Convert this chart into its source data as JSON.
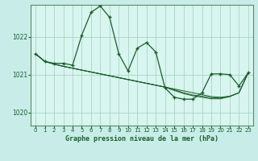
{
  "title": "Graphe pression niveau de la mer (hPa)",
  "background_color": "#c8ede8",
  "plot_bg_color": "#d8f5ef",
  "grid_color": "#9ecfbf",
  "line_color": "#1a5e2a",
  "marker_color": "#1a5e2a",
  "xlim": [
    -0.5,
    23.5
  ],
  "ylim": [
    1019.65,
    1022.85
  ],
  "yticks": [
    1020,
    1021,
    1022
  ],
  "xticks": [
    0,
    1,
    2,
    3,
    4,
    5,
    6,
    7,
    8,
    9,
    10,
    11,
    12,
    13,
    14,
    15,
    16,
    17,
    18,
    19,
    20,
    21,
    22,
    23
  ],
  "series": [
    [
      1021.55,
      1021.35,
      1021.3,
      1021.3,
      1021.25,
      1022.05,
      1022.65,
      1022.82,
      1022.52,
      1021.55,
      1021.1,
      1021.7,
      1021.85,
      1021.6,
      1020.65,
      1020.4,
      1020.35,
      1020.35,
      1020.52,
      1021.02,
      1021.02,
      1021.0,
      1020.7,
      1021.05
    ],
    [
      1021.55,
      1021.35,
      1021.28,
      1021.22,
      1021.17,
      1021.12,
      1021.07,
      1021.02,
      1020.97,
      1020.92,
      1020.87,
      1020.82,
      1020.77,
      1020.72,
      1020.67,
      1020.62,
      1020.57,
      1020.52,
      1020.47,
      1020.42,
      1020.4,
      1020.43,
      1020.52,
      1021.05
    ],
    [
      1021.55,
      1021.35,
      1021.28,
      1021.22,
      1021.17,
      1021.12,
      1021.07,
      1021.02,
      1020.97,
      1020.92,
      1020.87,
      1020.82,
      1020.77,
      1020.72,
      1020.67,
      1020.6,
      1020.52,
      1020.46,
      1020.43,
      1020.39,
      1020.38,
      1020.42,
      1020.52,
      1021.05
    ],
    [
      1021.55,
      1021.35,
      1021.28,
      1021.22,
      1021.17,
      1021.12,
      1021.07,
      1021.02,
      1020.97,
      1020.92,
      1020.87,
      1020.82,
      1020.77,
      1020.72,
      1020.67,
      1020.58,
      1020.5,
      1020.44,
      1020.4,
      1020.36,
      1020.36,
      1020.42,
      1020.52,
      1021.05
    ]
  ]
}
